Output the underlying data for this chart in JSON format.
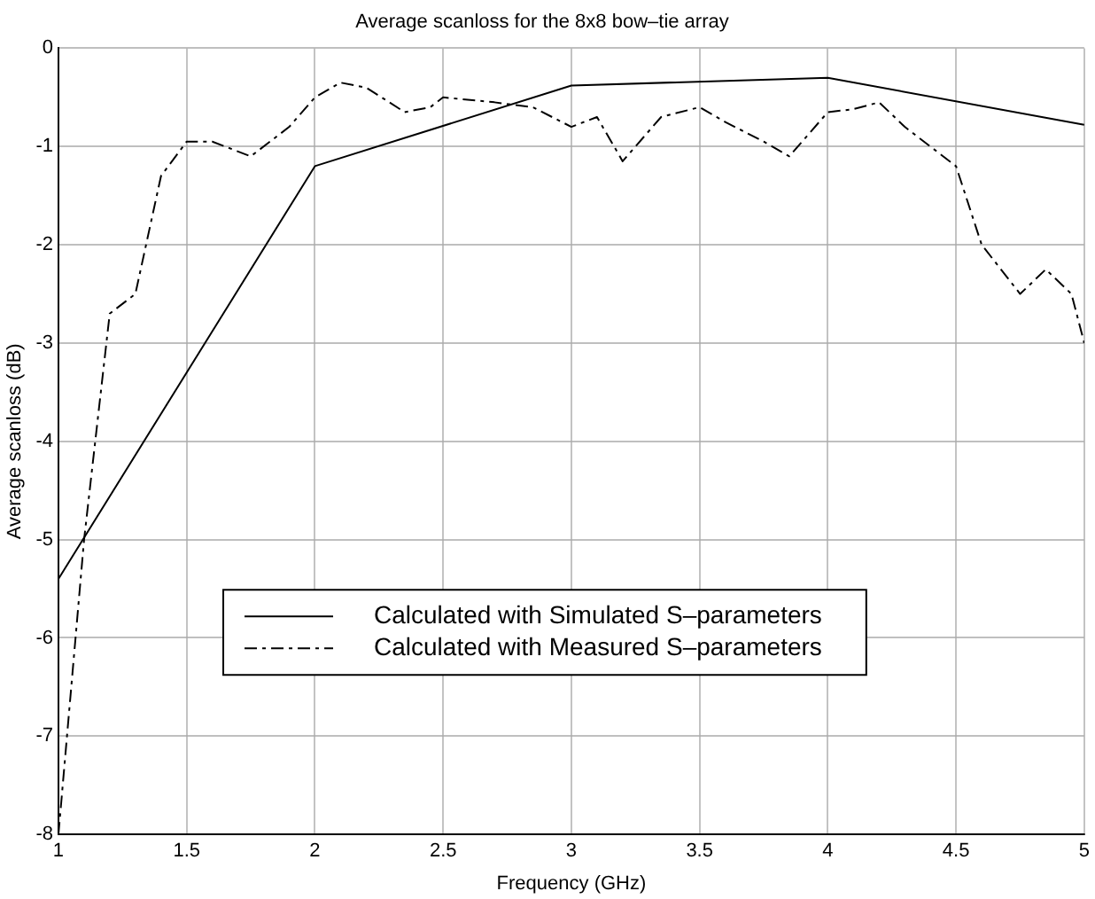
{
  "chart_data": {
    "type": "line",
    "title": "Average scanloss for the 8x8 bow–tie array",
    "xlabel": "Frequency (GHz)",
    "ylabel": "Average scanloss (dB)",
    "xlim": [
      1,
      5
    ],
    "xticks": [
      1,
      1.5,
      2,
      2.5,
      3,
      3.5,
      4,
      4.5,
      5
    ],
    "ylim": [
      -8,
      0
    ],
    "yticks": [
      -8,
      -7,
      -6,
      -5,
      -4,
      -3,
      -2,
      -1,
      0
    ],
    "grid": true,
    "legend": "bottom",
    "marker": "none",
    "series": [
      {
        "name": "Calculated with Simulated S–parameters",
        "color": "#000000",
        "line_style": "solid",
        "x": [
          1,
          2,
          3,
          4,
          5
        ],
        "values": [
          -5.4,
          -1.2,
          -0.38,
          -0.3,
          -0.78
        ]
      },
      {
        "name": "Calculated with Measured S–parameters",
        "color": "#000000",
        "line_style": "dashed",
        "x": [
          1,
          1.1,
          1.2,
          1.3,
          1.4,
          1.5,
          1.6,
          1.75,
          1.9,
          2,
          2.1,
          2.2,
          2.35,
          2.45,
          2.5,
          2.7,
          2.85,
          3,
          3.1,
          3.2,
          3.35,
          3.5,
          3.6,
          3.75,
          3.85,
          4,
          4.1,
          4.2,
          4.3,
          4.5,
          4.6,
          4.75,
          4.85,
          4.95,
          5
        ],
        "values": [
          -8,
          -5,
          -2.7,
          -2.5,
          -1.3,
          -0.95,
          -0.95,
          -1.1,
          -0.8,
          -0.5,
          -0.35,
          -0.4,
          -0.65,
          -0.6,
          -0.5,
          -0.55,
          -0.6,
          -0.8,
          -0.7,
          -1.15,
          -0.7,
          -0.6,
          -0.75,
          -0.95,
          -1.1,
          -0.65,
          -0.62,
          -0.55,
          -0.8,
          -1.2,
          -2,
          -2.5,
          -2.25,
          -2.5,
          -3
        ]
      }
    ]
  }
}
